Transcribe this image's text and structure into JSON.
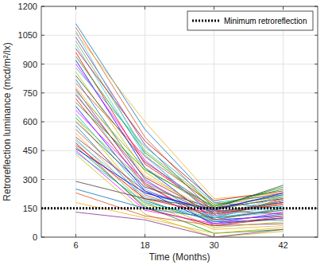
{
  "chart_data": {
    "type": "line",
    "x_label": "Time (Months)",
    "y_label": "Retroreflection luminance (mcd/m²/lx)",
    "x": [
      6,
      18,
      30,
      42
    ],
    "xlim": [
      0,
      48
    ],
    "xticks": [
      6,
      18,
      30,
      42
    ],
    "ylim": [
      0,
      1200
    ],
    "yticks": [
      0,
      150,
      300,
      450,
      600,
      750,
      900,
      1050,
      1200
    ],
    "grid": true,
    "legend": "upper right",
    "series": [
      {
        "color": "#0072bd",
        "values": [
          1110,
          560,
          180,
          150
        ]
      },
      {
        "color": "#d95319",
        "values": [
          1090,
          520,
          150,
          200
        ]
      },
      {
        "color": "#edb120",
        "values": [
          1060,
          600,
          200,
          230
        ]
      },
      {
        "color": "#7e2f8e",
        "values": [
          1040,
          480,
          130,
          180
        ]
      },
      {
        "color": "#77ac30",
        "values": [
          1020,
          450,
          170,
          210
        ]
      },
      {
        "color": "#4dbeee",
        "values": [
          1000,
          420,
          110,
          160
        ]
      },
      {
        "color": "#a2142f",
        "values": [
          980,
          500,
          190,
          240
        ]
      },
      {
        "color": "#ff0000",
        "values": [
          960,
          380,
          140,
          120
        ]
      },
      {
        "color": "#00a000",
        "values": [
          940,
          440,
          160,
          250
        ]
      },
      {
        "color": "#0000ff",
        "values": [
          920,
          360,
          90,
          110
        ]
      },
      {
        "color": "#ff00ff",
        "values": [
          900,
          400,
          120,
          190
        ]
      },
      {
        "color": "#00bfbf",
        "values": [
          880,
          470,
          180,
          220
        ]
      },
      {
        "color": "#bfbf00",
        "values": [
          860,
          340,
          100,
          140
        ]
      },
      {
        "color": "#404040",
        "values": [
          840,
          390,
          150,
          200
        ]
      },
      {
        "color": "#0072bd",
        "values": [
          820,
          300,
          80,
          90
        ]
      },
      {
        "color": "#d95319",
        "values": [
          800,
          420,
          170,
          230
        ]
      },
      {
        "color": "#edb120",
        "values": [
          780,
          320,
          130,
          170
        ]
      },
      {
        "color": "#7e2f8e",
        "values": [
          770,
          280,
          60,
          70
        ]
      },
      {
        "color": "#77ac30",
        "values": [
          760,
          360,
          140,
          210
        ]
      },
      {
        "color": "#4dbeee",
        "values": [
          750,
          250,
          100,
          130
        ]
      },
      {
        "color": "#a2142f",
        "values": [
          740,
          310,
          120,
          180
        ]
      },
      {
        "color": "#ff0000",
        "values": [
          720,
          270,
          90,
          150
        ]
      },
      {
        "color": "#00a000",
        "values": [
          700,
          350,
          160,
          260
        ]
      },
      {
        "color": "#0000ff",
        "values": [
          680,
          240,
          70,
          100
        ]
      },
      {
        "color": "#ff00ff",
        "values": [
          660,
          290,
          110,
          190
        ]
      },
      {
        "color": "#00bfbf",
        "values": [
          640,
          230,
          130,
          160
        ]
      },
      {
        "color": "#bfbf00",
        "values": [
          620,
          200,
          50,
          80
        ]
      },
      {
        "color": "#404040",
        "values": [
          600,
          260,
          150,
          220
        ]
      },
      {
        "color": "#0072bd",
        "values": [
          580,
          190,
          80,
          120
        ]
      },
      {
        "color": "#d95319",
        "values": [
          560,
          220,
          100,
          200
        ]
      },
      {
        "color": "#edb120",
        "values": [
          540,
          180,
          40,
          60
        ]
      },
      {
        "color": "#7e2f8e",
        "values": [
          520,
          240,
          130,
          180
        ]
      },
      {
        "color": "#77ac30",
        "values": [
          510,
          170,
          90,
          150
        ]
      },
      {
        "color": "#4dbeee",
        "values": [
          500,
          210,
          110,
          210
        ]
      },
      {
        "color": "#a2142f",
        "values": [
          490,
          150,
          60,
          100
        ]
      },
      {
        "color": "#ff0000",
        "values": [
          480,
          200,
          120,
          170
        ]
      },
      {
        "color": "#00a000",
        "values": [
          470,
          160,
          20,
          40
        ]
      },
      {
        "color": "#0000ff",
        "values": [
          460,
          230,
          140,
          230
        ]
      },
      {
        "color": "#ff00ff",
        "values": [
          450,
          140,
          70,
          130
        ]
      },
      {
        "color": "#00bfbf",
        "values": [
          440,
          180,
          100,
          190
        ]
      },
      {
        "color": "#bfbf00",
        "values": [
          430,
          120,
          0,
          30
        ]
      },
      {
        "color": "#404040",
        "values": [
          290,
          200,
          150,
          270
        ]
      },
      {
        "color": "#0072bd",
        "values": [
          250,
          150,
          100,
          140
        ]
      },
      {
        "color": "#d95319",
        "values": [
          230,
          110,
          60,
          110
        ]
      },
      {
        "color": "#edb120",
        "values": [
          180,
          100,
          20,
          50
        ]
      },
      {
        "color": "#7e2f8e",
        "values": [
          130,
          90,
          0,
          40
        ]
      },
      {
        "color": "#77ac30",
        "values": [
          620,
          280,
          120,
          190
        ]
      },
      {
        "color": "#4dbeee",
        "values": [
          1070,
          430,
          100,
          150
        ]
      },
      {
        "name": "Minimum retroreflection",
        "color": "#000000",
        "line_style": "dotted",
        "x": [
          0,
          48
        ],
        "values": [
          150,
          150
        ]
      }
    ]
  }
}
